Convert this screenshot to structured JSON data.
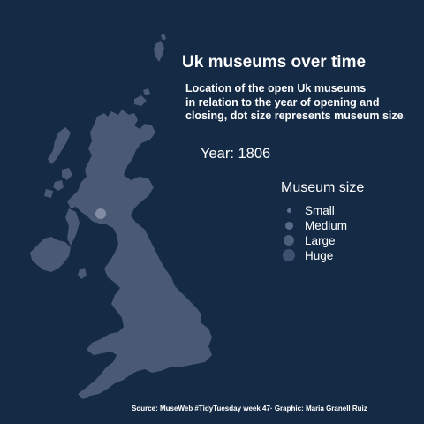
{
  "title": "Uk museums over time",
  "subtitle": "Location of the open Uk museums\nin relation to the year of opening and\nclosing, dot size represents museum size",
  "subtitle_end": ".",
  "year_label": "Year: 1806",
  "legend": {
    "title": "Museum size",
    "items": [
      {
        "label": "Small",
        "color": "#5f7090"
      },
      {
        "label": "Medium",
        "color": "#5a6b89"
      },
      {
        "label": "Large",
        "color": "#4d5e7b"
      },
      {
        "label": "Huge",
        "color": "#3f5070"
      }
    ]
  },
  "caption": "Source: MuseWeb #TidyTuesday week 47· Graphic: Maria Granell Ruiz",
  "colors": {
    "background": "#152a45",
    "land": "#4a5a74",
    "museum_dot": "#8a96aa"
  },
  "museums": [
    {
      "name": "",
      "size": "Medium"
    }
  ]
}
